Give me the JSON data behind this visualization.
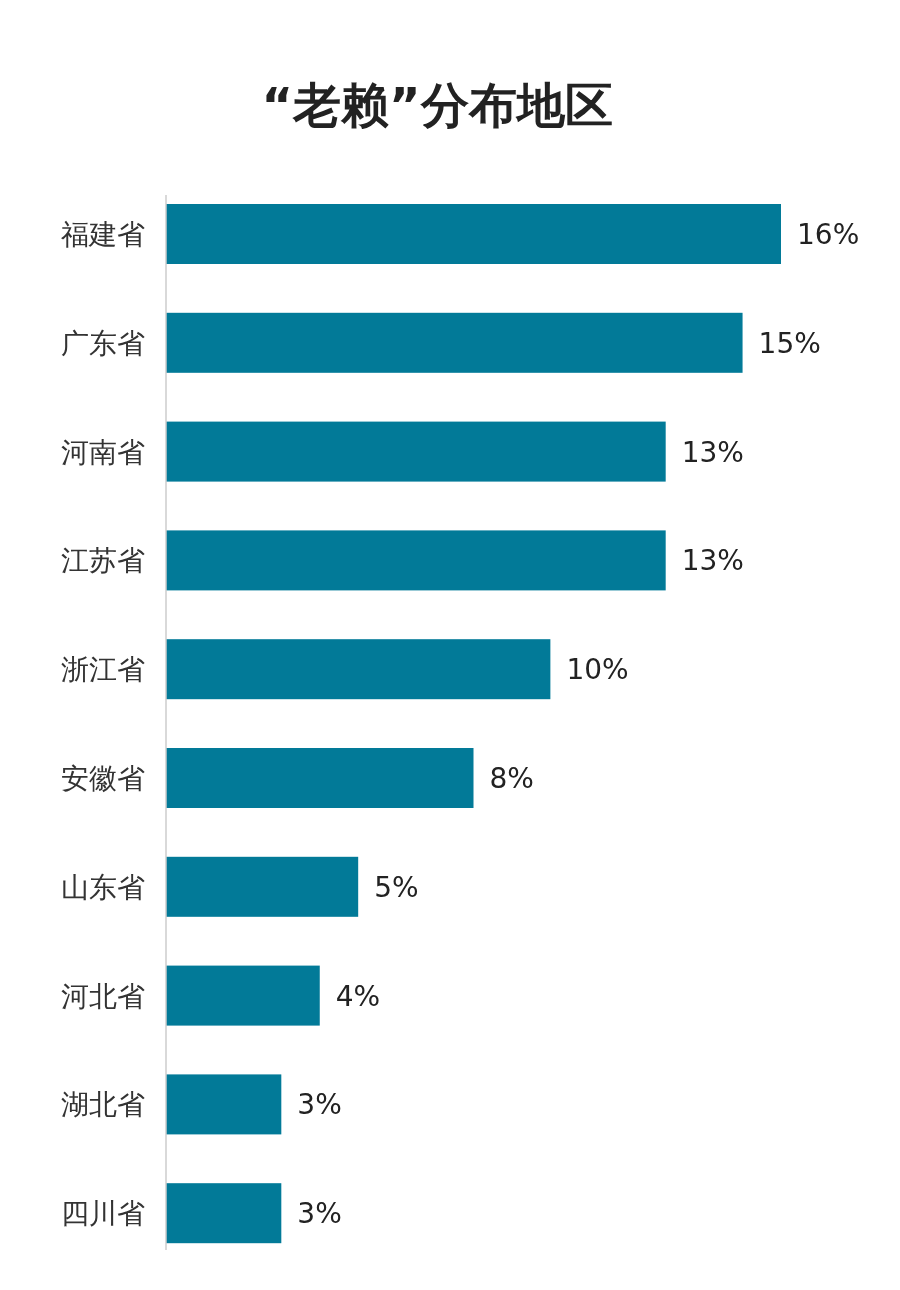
{
  "chart_data": {
    "type": "bar",
    "orientation": "horizontal",
    "title": "“老赖”分布地区",
    "categories": [
      "福建省",
      "广东省",
      "河南省",
      "江苏省",
      "浙江省",
      "安徽省",
      "山东省",
      "河北省",
      "湖北省",
      "四川省"
    ],
    "values": [
      16,
      15,
      13,
      13,
      10,
      8,
      5,
      4,
      3,
      3
    ],
    "value_labels": [
      "16%",
      "15%",
      "13%",
      "13%",
      "10%",
      "8%",
      "5%",
      "4%",
      "3%",
      "3%"
    ],
    "color": "#027a98"
  }
}
